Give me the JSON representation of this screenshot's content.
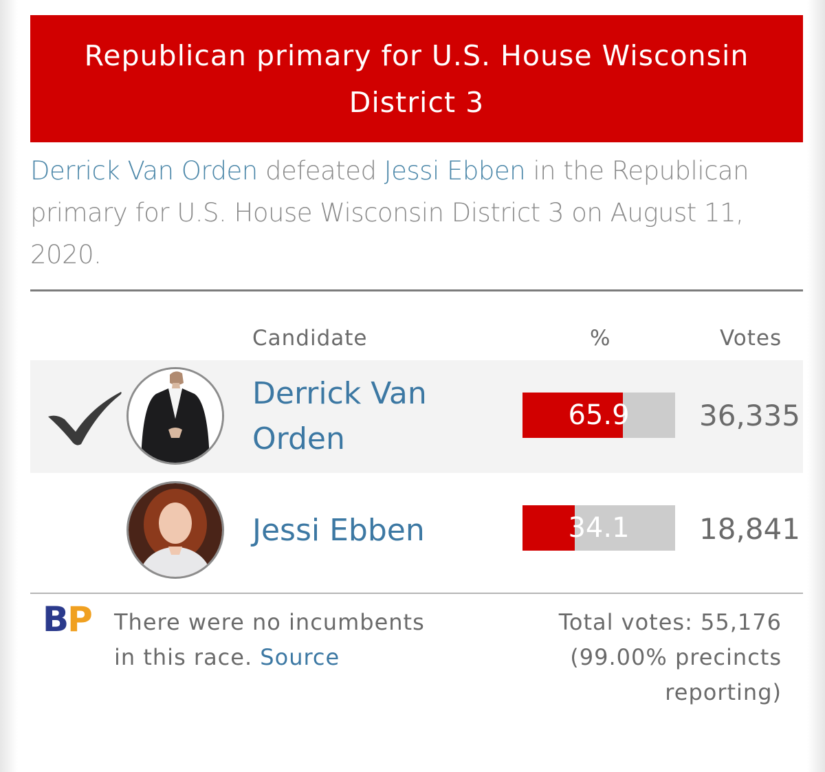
{
  "header": {
    "title": "Republican primary for U.S. House Wisconsin District 3"
  },
  "summary": {
    "winner": "Derrick Van Orden",
    "defeated_text": "defeated",
    "loser": "Jessi Ebben",
    "rest": "in the Republican primary for U.S. House Wisconsin District 3 on August 11, 2020."
  },
  "table": {
    "headers": {
      "candidate": "Candidate",
      "percent": "%",
      "votes": "Votes"
    },
    "rows": [
      {
        "name": "Derrick Van Orden",
        "percent": 65.9,
        "percent_label": "65.9",
        "votes": "36,335",
        "winner": true,
        "avatar_icon": "man-in-suit-avatar"
      },
      {
        "name": "Jessi Ebben",
        "percent": 34.1,
        "percent_label": "34.1",
        "votes": "18,841",
        "winner": false,
        "avatar_icon": "woman-red-hair-avatar"
      }
    ]
  },
  "footer": {
    "logo_b": "B",
    "logo_p": "P",
    "note_line1": "There were no incumbents",
    "note_line2": "in this race.",
    "source_link": "Source",
    "total_line": "Total votes: 55,176",
    "precincts_line1": "(99.00% precincts",
    "precincts_line2": "reporting)"
  },
  "colors": {
    "header_red": "#d10000",
    "bar_red": "#d10000",
    "bar_gray": "#cccccc",
    "link_blue": "#3c78a3"
  }
}
